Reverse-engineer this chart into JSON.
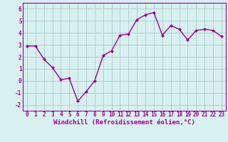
{
  "x": [
    0,
    1,
    2,
    3,
    4,
    5,
    6,
    7,
    8,
    9,
    10,
    11,
    12,
    13,
    14,
    15,
    16,
    17,
    18,
    19,
    20,
    21,
    22,
    23
  ],
  "y": [
    2.9,
    2.9,
    1.8,
    1.1,
    0.1,
    0.2,
    -1.7,
    -0.9,
    0.0,
    2.1,
    2.5,
    3.8,
    3.9,
    5.1,
    5.5,
    5.7,
    3.8,
    4.6,
    4.3,
    3.4,
    4.2,
    4.3,
    4.2,
    3.7
  ],
  "line_color": "#990099",
  "marker": "D",
  "marker_size": 2,
  "bg_color": "#d8f0f0",
  "grid_color": "#aacccc",
  "xlabel": "Windchill (Refroidissement éolien,°C)",
  "xlim": [
    -0.5,
    23.5
  ],
  "ylim": [
    -2.5,
    6.5
  ],
  "yticks": [
    -2,
    -1,
    0,
    1,
    2,
    3,
    4,
    5,
    6
  ],
  "xticks": [
    0,
    1,
    2,
    3,
    4,
    5,
    6,
    7,
    8,
    9,
    10,
    11,
    12,
    13,
    14,
    15,
    16,
    17,
    18,
    19,
    20,
    21,
    22,
    23
  ],
  "tick_label_size": 5.5,
  "xlabel_size": 6.5,
  "line_width": 1.0
}
